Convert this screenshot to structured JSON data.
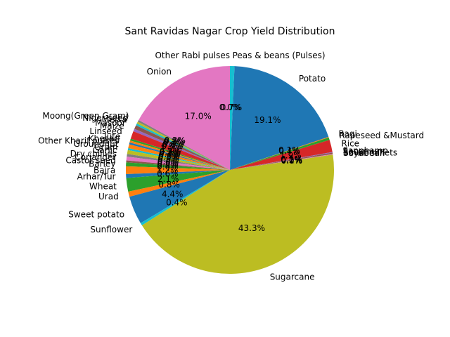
{
  "chart_data": {
    "type": "pie",
    "title": "Sant Ravidas Nagar Crop Yield Distribution",
    "slices": [
      {
        "label": "Onion",
        "value": 17.0,
        "pct": "17.0%",
        "color": "#e377c2"
      },
      {
        "label": "Moong(Green Gram)",
        "value": 0.3,
        "pct": "0.3%",
        "color": "#7f7f7f"
      },
      {
        "label": "Niger seed",
        "value": 0.3,
        "pct": "0.3%",
        "color": "#bcbd22"
      },
      {
        "label": "Mesta",
        "value": 0.3,
        "pct": "0.3%",
        "color": "#17becf"
      },
      {
        "label": "Masoor",
        "value": 0.6,
        "pct": "0.6%",
        "color": "#8c564b"
      },
      {
        "label": "Maize",
        "value": 0.4,
        "pct": "0.4%",
        "color": "#9467bd"
      },
      {
        "label": "Linseed",
        "value": 1.2,
        "pct": "1.2%",
        "color": "#d62728"
      },
      {
        "label": "Jute",
        "value": 0.3,
        "pct": "0.3%",
        "color": "#2ca02c"
      },
      {
        "label": "Khesari",
        "value": 0.3,
        "pct": "0.3%",
        "color": "#ff7f0e"
      },
      {
        "label": "Other Kharif pulses",
        "value": 0.3,
        "pct": "0.3%",
        "color": "#1f77b4"
      },
      {
        "label": "Groundnut",
        "value": 0.6,
        "pct": "0.6%",
        "color": "#ff7f0e"
      },
      {
        "label": "Gram",
        "value": 0.3,
        "pct": "0.3%",
        "color": "#17becf"
      },
      {
        "label": "Garlic",
        "value": 0.6,
        "pct": "0.6%",
        "color": "#bcbd22"
      },
      {
        "label": "Dry chillies",
        "value": 0.4,
        "pct": "0.4%",
        "color": "#7f7f7f"
      },
      {
        "label": "Coriander",
        "value": 0.6,
        "pct": "0.6%",
        "color": "#e377c2"
      },
      {
        "label": "Castor seed",
        "value": 0.3,
        "pct": "0.3%",
        "color": "#8c564b"
      },
      {
        "label": "Barley",
        "value": 0.6,
        "pct": "0.6%",
        "color": "#2ca02c"
      },
      {
        "label": "Bajra",
        "value": 1.2,
        "pct": "1.2%",
        "color": "#ff7f0e"
      },
      {
        "label": "Arhar/Tur",
        "value": 0.6,
        "pct": "0.6%",
        "color": "#1f77b4"
      },
      {
        "label": "Wheat",
        "value": 2.1,
        "pct": "2.1%",
        "color": "#2ca02c"
      },
      {
        "label": "Urad",
        "value": 0.8,
        "pct": "0.8%",
        "color": "#ff7f0e"
      },
      {
        "label": "Sweet potato",
        "value": 4.4,
        "pct": "4.4%",
        "color": "#1f77b4"
      },
      {
        "label": "Sunflower",
        "value": 0.4,
        "pct": "0.4%",
        "color": "#17becf"
      },
      {
        "label": "Sugarcane",
        "value": 43.3,
        "pct": "43.3%",
        "color": "#bcbd22"
      },
      {
        "label": "Soyabean",
        "value": 0.0,
        "pct": "0.0%",
        "color": "#7f7f7f"
      },
      {
        "label": "Small millets",
        "value": 0.1,
        "pct": "0.1%",
        "color": "#e377c2"
      },
      {
        "label": "Sesamum",
        "value": 0.2,
        "pct": "0.2%",
        "color": "#8c564b"
      },
      {
        "label": "Sannhamp",
        "value": 0.1,
        "pct": "0.1%",
        "color": "#9467bd"
      },
      {
        "label": "Rice",
        "value": 1.9,
        "pct": "1.9%",
        "color": "#d62728"
      },
      {
        "label": "Rapeseed &Mustard",
        "value": 0.4,
        "pct": "0.4%",
        "color": "#2ca02c"
      },
      {
        "label": "Ragi",
        "value": 0.1,
        "pct": "0.1%",
        "color": "#ff7f0e"
      },
      {
        "label": "Potato",
        "value": 19.1,
        "pct": "19.1%",
        "color": "#1f77b4"
      },
      {
        "label": "Peas & beans (Pulses)",
        "value": 0.7,
        "pct": "0.7%",
        "color": "#17becf"
      },
      {
        "label": "Other Rabi pulses",
        "value": 0.0,
        "pct": "0.0%",
        "color": "#bcbd22"
      }
    ],
    "start_angle_deg": 90,
    "direction": "counterclockwise"
  }
}
